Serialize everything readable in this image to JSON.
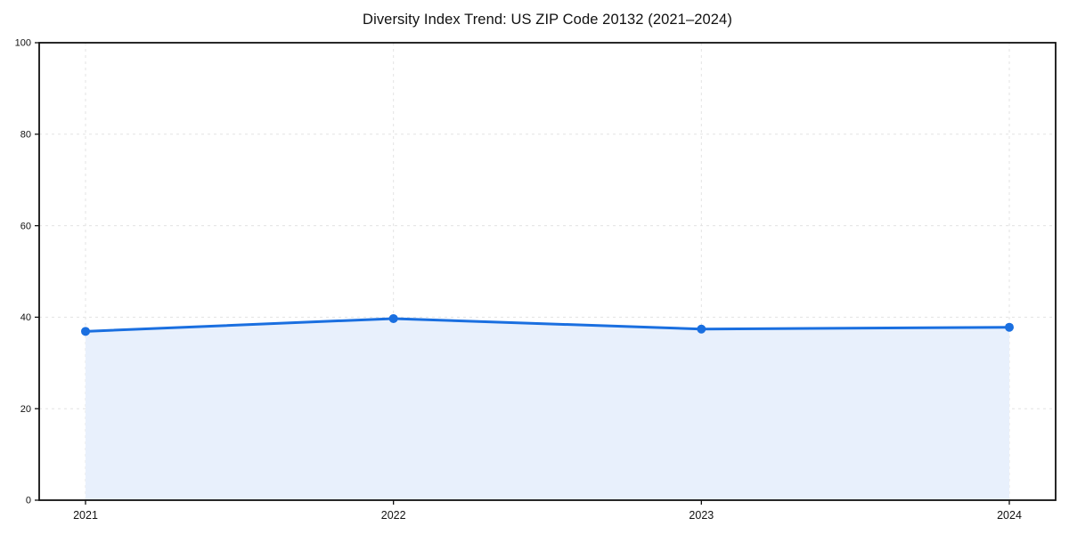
{
  "chart_data": {
    "type": "area",
    "title": "Diversity Index Trend: US ZIP Code 20132 (2021–2024)",
    "x": [
      "2021",
      "2022",
      "2023",
      "2024"
    ],
    "series": [
      {
        "name": "Diversity Index",
        "values": [
          36.9,
          39.7,
          37.4,
          37.8
        ]
      }
    ],
    "xlabel": "",
    "ylabel": "",
    "ylim": [
      0,
      100
    ],
    "yticks": [
      0,
      20,
      40,
      60,
      80,
      100
    ],
    "grid": true,
    "legend_position": "none",
    "colors": {
      "line": "#1a6fe0",
      "fill": "#e8f0fc",
      "grid": "#e3e3e3",
      "axis": "#111111",
      "text": "#111111"
    }
  }
}
